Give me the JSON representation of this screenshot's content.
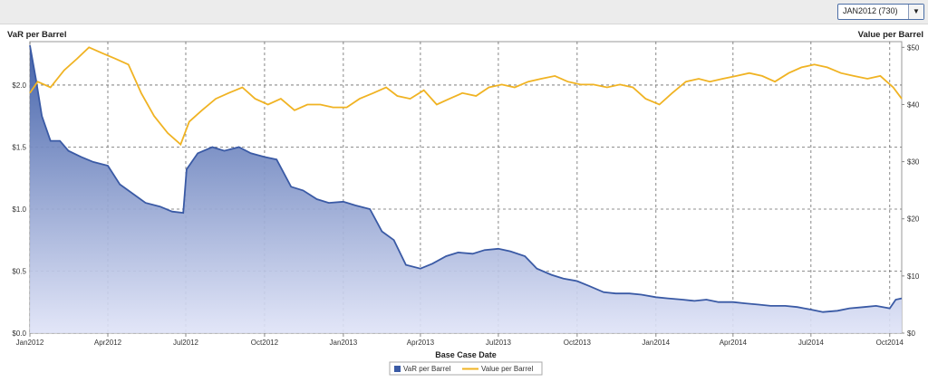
{
  "selector": {
    "value": "JAN2012 (730)",
    "icon": "chevron-down-icon"
  },
  "chart_data": {
    "type": "area+line",
    "xlabel": "Base Case Date",
    "ylabel_left": "VaR per Barrel",
    "ylabel_right": "Value per Barrel",
    "x_ticks": [
      "Jan2012",
      "Apr2012",
      "Jul2012",
      "Oct2012",
      "Jan2013",
      "Apr2013",
      "Jul2013",
      "Oct2013",
      "Jan2014",
      "Apr2014",
      "Jul2014",
      "Oct2014"
    ],
    "y_left_ticks": [
      "$0.0",
      "$0.5",
      "$1.0",
      "$1.5",
      "$2.0"
    ],
    "y_right_ticks": [
      "$0",
      "$10",
      "$20",
      "$30",
      "$40",
      "$50"
    ],
    "ylim_left": [
      0,
      2.35
    ],
    "ylim_right": [
      0,
      51
    ],
    "grid": true,
    "legend_position": "bottom-center",
    "series": [
      {
        "name": "VaR per Barrel",
        "axis": "left",
        "render": "area",
        "color": "#3a5aa5",
        "points": [
          [
            "2012-01-01",
            2.32
          ],
          [
            "2012-01-08",
            2.05
          ],
          [
            "2012-01-15",
            1.75
          ],
          [
            "2012-01-25",
            1.55
          ],
          [
            "2012-02-05",
            1.55
          ],
          [
            "2012-02-15",
            1.47
          ],
          [
            "2012-03-01",
            1.42
          ],
          [
            "2012-03-15",
            1.38
          ],
          [
            "2012-04-01",
            1.35
          ],
          [
            "2012-04-15",
            1.2
          ],
          [
            "2012-05-01",
            1.12
          ],
          [
            "2012-05-15",
            1.05
          ],
          [
            "2012-06-01",
            1.02
          ],
          [
            "2012-06-15",
            0.98
          ],
          [
            "2012-06-28",
            0.97
          ],
          [
            "2012-07-02",
            1.32
          ],
          [
            "2012-07-15",
            1.45
          ],
          [
            "2012-08-01",
            1.5
          ],
          [
            "2012-08-15",
            1.47
          ],
          [
            "2012-09-01",
            1.5
          ],
          [
            "2012-09-15",
            1.45
          ],
          [
            "2012-10-01",
            1.42
          ],
          [
            "2012-10-15",
            1.4
          ],
          [
            "2012-11-01",
            1.18
          ],
          [
            "2012-11-15",
            1.15
          ],
          [
            "2012-12-01",
            1.08
          ],
          [
            "2012-12-15",
            1.05
          ],
          [
            "2013-01-01",
            1.06
          ],
          [
            "2013-01-15",
            1.03
          ],
          [
            "2013-02-01",
            1.0
          ],
          [
            "2013-02-15",
            0.82
          ],
          [
            "2013-03-01",
            0.75
          ],
          [
            "2013-03-15",
            0.55
          ],
          [
            "2013-04-01",
            0.52
          ],
          [
            "2013-04-15",
            0.56
          ],
          [
            "2013-05-01",
            0.62
          ],
          [
            "2013-05-15",
            0.65
          ],
          [
            "2013-06-01",
            0.64
          ],
          [
            "2013-06-15",
            0.67
          ],
          [
            "2013-07-01",
            0.68
          ],
          [
            "2013-07-15",
            0.66
          ],
          [
            "2013-08-01",
            0.62
          ],
          [
            "2013-08-15",
            0.52
          ],
          [
            "2013-09-01",
            0.47
          ],
          [
            "2013-09-15",
            0.44
          ],
          [
            "2013-10-01",
            0.42
          ],
          [
            "2013-10-15",
            0.38
          ],
          [
            "2013-11-01",
            0.33
          ],
          [
            "2013-11-15",
            0.32
          ],
          [
            "2013-12-01",
            0.32
          ],
          [
            "2013-12-15",
            0.31
          ],
          [
            "2014-01-01",
            0.29
          ],
          [
            "2014-01-15",
            0.28
          ],
          [
            "2014-02-01",
            0.27
          ],
          [
            "2014-02-15",
            0.26
          ],
          [
            "2014-03-01",
            0.27
          ],
          [
            "2014-03-15",
            0.25
          ],
          [
            "2014-04-01",
            0.25
          ],
          [
            "2014-04-15",
            0.24
          ],
          [
            "2014-05-01",
            0.23
          ],
          [
            "2014-05-15",
            0.22
          ],
          [
            "2014-06-01",
            0.22
          ],
          [
            "2014-06-15",
            0.21
          ],
          [
            "2014-07-01",
            0.19
          ],
          [
            "2014-07-15",
            0.17
          ],
          [
            "2014-08-01",
            0.18
          ],
          [
            "2014-08-15",
            0.2
          ],
          [
            "2014-09-01",
            0.21
          ],
          [
            "2014-09-15",
            0.22
          ],
          [
            "2014-10-01",
            0.2
          ],
          [
            "2014-10-08",
            0.27
          ],
          [
            "2014-10-15",
            0.28
          ]
        ]
      },
      {
        "name": "Value per Barrel",
        "axis": "right",
        "render": "line",
        "color": "#f0b323",
        "points": [
          [
            "2012-01-01",
            42
          ],
          [
            "2012-01-10",
            44
          ],
          [
            "2012-01-25",
            43
          ],
          [
            "2012-02-10",
            46
          ],
          [
            "2012-02-25",
            48
          ],
          [
            "2012-03-10",
            50
          ],
          [
            "2012-03-25",
            49
          ],
          [
            "2012-04-10",
            48
          ],
          [
            "2012-04-25",
            47
          ],
          [
            "2012-05-10",
            42
          ],
          [
            "2012-05-25",
            38
          ],
          [
            "2012-06-10",
            35
          ],
          [
            "2012-06-25",
            33
          ],
          [
            "2012-07-05",
            37
          ],
          [
            "2012-07-20",
            39
          ],
          [
            "2012-08-05",
            41
          ],
          [
            "2012-08-20",
            42
          ],
          [
            "2012-09-05",
            43
          ],
          [
            "2012-09-20",
            41
          ],
          [
            "2012-10-05",
            40
          ],
          [
            "2012-10-20",
            41
          ],
          [
            "2012-11-05",
            39
          ],
          [
            "2012-11-20",
            40
          ],
          [
            "2012-12-05",
            40
          ],
          [
            "2012-12-20",
            39.5
          ],
          [
            "2013-01-05",
            39.5
          ],
          [
            "2013-01-20",
            41
          ],
          [
            "2013-02-05",
            42
          ],
          [
            "2013-02-20",
            43
          ],
          [
            "2013-03-05",
            41.5
          ],
          [
            "2013-03-20",
            41
          ],
          [
            "2013-04-05",
            42.5
          ],
          [
            "2013-04-20",
            40
          ],
          [
            "2013-05-05",
            41
          ],
          [
            "2013-05-20",
            42
          ],
          [
            "2013-06-05",
            41.5
          ],
          [
            "2013-06-20",
            43
          ],
          [
            "2013-07-05",
            43.5
          ],
          [
            "2013-07-20",
            43
          ],
          [
            "2013-08-05",
            44
          ],
          [
            "2013-08-20",
            44.5
          ],
          [
            "2013-09-05",
            45
          ],
          [
            "2013-09-20",
            44
          ],
          [
            "2013-10-05",
            43.5
          ],
          [
            "2013-10-20",
            43.5
          ],
          [
            "2013-11-05",
            43
          ],
          [
            "2013-11-20",
            43.5
          ],
          [
            "2013-12-05",
            43
          ],
          [
            "2013-12-20",
            41
          ],
          [
            "2014-01-05",
            40
          ],
          [
            "2014-01-20",
            42
          ],
          [
            "2014-02-05",
            44
          ],
          [
            "2014-02-20",
            44.5
          ],
          [
            "2014-03-05",
            44
          ],
          [
            "2014-03-20",
            44.5
          ],
          [
            "2014-04-05",
            45
          ],
          [
            "2014-04-20",
            45.5
          ],
          [
            "2014-05-05",
            45
          ],
          [
            "2014-05-20",
            44
          ],
          [
            "2014-06-05",
            45.5
          ],
          [
            "2014-06-20",
            46.5
          ],
          [
            "2014-07-05",
            47
          ],
          [
            "2014-07-20",
            46.5
          ],
          [
            "2014-08-05",
            45.5
          ],
          [
            "2014-08-20",
            45
          ],
          [
            "2014-09-05",
            44.5
          ],
          [
            "2014-09-20",
            45
          ],
          [
            "2014-10-05",
            43
          ],
          [
            "2014-10-15",
            41
          ]
        ]
      }
    ]
  }
}
